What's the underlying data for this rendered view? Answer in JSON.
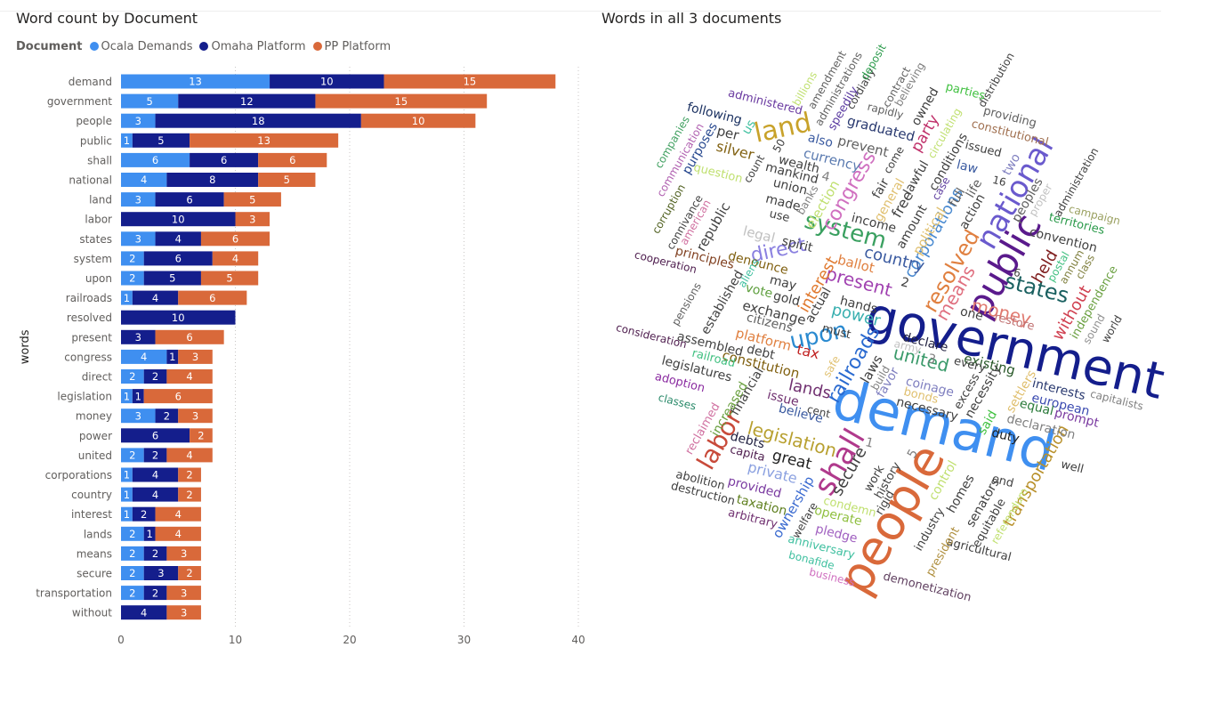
{
  "left_visual": {
    "title": "Word count by Document",
    "legend_title": "Document",
    "series_names": [
      "Ocala Demands",
      "Omaha Platform",
      "PP Platform"
    ],
    "colors": [
      "#3f8ff0",
      "#141e8c",
      "#d9693a"
    ]
  },
  "right_visual": {
    "title": "Words in all 3 documents"
  },
  "chart_data": [
    {
      "type": "bar",
      "orientation": "horizontal",
      "stacked": true,
      "title": "Word count by Document",
      "xlabel": "",
      "ylabel": "words",
      "xlim": [
        0,
        40
      ],
      "x_ticks": [
        0,
        10,
        20,
        30,
        40
      ],
      "categories": [
        "demand",
        "government",
        "people",
        "public",
        "shall",
        "national",
        "land",
        "labor",
        "states",
        "system",
        "upon",
        "railroads",
        "resolved",
        "present",
        "congress",
        "direct",
        "legislation",
        "money",
        "power",
        "united",
        "corporations",
        "country",
        "interest",
        "lands",
        "means",
        "secure",
        "transportation",
        "without"
      ],
      "series": [
        {
          "name": "Ocala Demands",
          "color": "#3f8ff0",
          "values": [
            13,
            5,
            3,
            1,
            6,
            4,
            3,
            0,
            3,
            2,
            2,
            1,
            0,
            0,
            4,
            2,
            1,
            3,
            0,
            2,
            1,
            1,
            1,
            2,
            2,
            2,
            2,
            0
          ]
        },
        {
          "name": "Omaha Platform",
          "color": "#141e8c",
          "values": [
            10,
            12,
            18,
            5,
            6,
            8,
            6,
            10,
            4,
            6,
            5,
            4,
            10,
            3,
            1,
            2,
            1,
            2,
            6,
            2,
            4,
            4,
            2,
            1,
            2,
            3,
            2,
            4
          ]
        },
        {
          "name": "PP Platform",
          "color": "#d9693a",
          "values": [
            15,
            15,
            10,
            13,
            6,
            5,
            5,
            3,
            6,
            4,
            5,
            6,
            0,
            6,
            3,
            4,
            6,
            3,
            2,
            4,
            2,
            2,
            4,
            4,
            3,
            2,
            3,
            3
          ]
        }
      ]
    },
    {
      "type": "wordcloud",
      "title": "Words in all 3 documents",
      "words": [
        {
          "text": "government",
          "color": "#141e8c"
        },
        {
          "text": "demand",
          "color": "#3f8ff0"
        },
        {
          "text": "people",
          "color": "#d9693a"
        },
        {
          "text": "public",
          "color": "#5a1a8c"
        },
        {
          "text": "national",
          "color": "#6a5acd"
        },
        {
          "text": "land",
          "color": "#c8a22a"
        },
        {
          "text": "shall",
          "color": "#b03a8c"
        },
        {
          "text": "labor",
          "color": "#c84a3a"
        },
        {
          "text": "system",
          "color": "#3aa060"
        },
        {
          "text": "states",
          "color": "#1a6060"
        },
        {
          "text": "railroads",
          "color": "#2a6ad0"
        },
        {
          "text": "legislation",
          "color": "#b8a030"
        },
        {
          "text": "upon",
          "color": "#2a8ad0"
        },
        {
          "text": "present",
          "color": "#a040b0"
        },
        {
          "text": "resolved",
          "color": "#e08040"
        },
        {
          "text": "money",
          "color": "#e07a70"
        },
        {
          "text": "congress",
          "color": "#d070c0"
        },
        {
          "text": "direct",
          "color": "#8a80e0"
        },
        {
          "text": "united",
          "color": "#3a9a6a"
        },
        {
          "text": "power",
          "color": "#3ab0b0"
        },
        {
          "text": "interest",
          "color": "#e07a30"
        },
        {
          "text": "corporations",
          "color": "#4a8ad0"
        },
        {
          "text": "country",
          "color": "#3a5aa0"
        },
        {
          "text": "means",
          "color": "#e07080"
        },
        {
          "text": "secure",
          "color": "#404040"
        },
        {
          "text": "transportation",
          "color": "#b8902a"
        },
        {
          "text": "without",
          "color": "#d04050"
        },
        {
          "text": "lands",
          "color": "#703070"
        },
        {
          "text": "following",
          "color": "#1a3060"
        },
        {
          "text": "silver",
          "color": "#806010"
        },
        {
          "text": "per",
          "color": "#404040"
        },
        {
          "text": "purposes",
          "color": "#2a4a90"
        },
        {
          "text": "graduated",
          "color": "#2a3a70"
        },
        {
          "text": "prevent",
          "color": "#606060"
        },
        {
          "text": "party",
          "color": "#c0306a"
        },
        {
          "text": "owned",
          "color": "#404040"
        },
        {
          "text": "providing",
          "color": "#606060"
        },
        {
          "text": "constitutional",
          "color": "#a07050"
        },
        {
          "text": "distribution",
          "color": "#404040"
        },
        {
          "text": "administration",
          "color": "#404040"
        },
        {
          "text": "convention",
          "color": "#404040"
        },
        {
          "text": "territories",
          "color": "#2a9a4a"
        },
        {
          "text": "campaign",
          "color": "#9aa060"
        },
        {
          "text": "independence",
          "color": "#6aa040"
        },
        {
          "text": "sound",
          "color": "#909090"
        },
        {
          "text": "world",
          "color": "#404040"
        },
        {
          "text": "held",
          "color": "#802020"
        },
        {
          "text": "interests",
          "color": "#2a3a70"
        },
        {
          "text": "european",
          "color": "#3a4ab0"
        },
        {
          "text": "capitalists",
          "color": "#808080"
        },
        {
          "text": "prompt",
          "color": "#7a3aa0"
        },
        {
          "text": "equal",
          "color": "#2a7a3a"
        },
        {
          "text": "declaration",
          "color": "#808080"
        },
        {
          "text": "duty",
          "color": "#202020"
        },
        {
          "text": "well",
          "color": "#404040"
        },
        {
          "text": "agricultural",
          "color": "#404040"
        },
        {
          "text": "demonetization",
          "color": "#604060"
        },
        {
          "text": "business",
          "color": "#d070c0"
        },
        {
          "text": "bonafide",
          "color": "#40c0a0"
        },
        {
          "text": "anniversary",
          "color": "#40c0a0"
        },
        {
          "text": "pledge",
          "color": "#a060c0"
        },
        {
          "text": "operate",
          "color": "#90c040"
        },
        {
          "text": "condemn",
          "color": "#c0e070"
        },
        {
          "text": "welfare",
          "color": "#404040"
        },
        {
          "text": "ownership",
          "color": "#3a6ad0"
        },
        {
          "text": "taxation",
          "color": "#608020"
        },
        {
          "text": "arbitrary",
          "color": "#703070"
        },
        {
          "text": "provided",
          "color": "#7a3aa0"
        },
        {
          "text": "destruction",
          "color": "#404040"
        },
        {
          "text": "abolition",
          "color": "#404040"
        },
        {
          "text": "private",
          "color": "#8aa0e0"
        },
        {
          "text": "great",
          "color": "#202020"
        },
        {
          "text": "capita",
          "color": "#502050"
        },
        {
          "text": "debts",
          "color": "#202040"
        },
        {
          "text": "classes",
          "color": "#2a8a6a"
        },
        {
          "text": "adoption",
          "color": "#8a2aa0"
        },
        {
          "text": "legislatures",
          "color": "#404040"
        },
        {
          "text": "consideration",
          "color": "#502050"
        },
        {
          "text": "cooperation",
          "color": "#502050"
        },
        {
          "text": "pensions",
          "color": "#606060"
        },
        {
          "text": "principles",
          "color": "#804020"
        },
        {
          "text": "republic",
          "color": "#404040"
        },
        {
          "text": "corruption",
          "color": "#506020"
        },
        {
          "text": "connivance",
          "color": "#404040"
        },
        {
          "text": "american",
          "color": "#d070a0"
        },
        {
          "text": "communication",
          "color": "#b060b0"
        },
        {
          "text": "companies",
          "color": "#40a060"
        },
        {
          "text": "question",
          "color": "#c0e070"
        },
        {
          "text": "administered",
          "color": "#6a3aa0"
        },
        {
          "text": "billions",
          "color": "#c0e070"
        },
        {
          "text": "amendment",
          "color": "#606060"
        },
        {
          "text": "administrations",
          "color": "#606060"
        },
        {
          "text": "speedily",
          "color": "#5a3aa0"
        },
        {
          "text": "cordially",
          "color": "#404040"
        },
        {
          "text": "deposit",
          "color": "#2a9a4a"
        },
        {
          "text": "contract",
          "color": "#606060"
        },
        {
          "text": "believing",
          "color": "#808080"
        },
        {
          "text": "rapidly",
          "color": "#606060"
        },
        {
          "text": "parties",
          "color": "#40c040"
        },
        {
          "text": "issued",
          "color": "#404040"
        },
        {
          "text": "circulating",
          "color": "#c0e070"
        },
        {
          "text": "two",
          "color": "#8080c0"
        },
        {
          "text": "wealth",
          "color": "#404040"
        },
        {
          "text": "mankind",
          "color": "#404040"
        },
        {
          "text": "union",
          "color": "#404040"
        },
        {
          "text": "made",
          "color": "#404040"
        },
        {
          "text": "use",
          "color": "#404040"
        },
        {
          "text": "currency",
          "color": "#5a7ab0"
        },
        {
          "text": "also",
          "color": "#3a5aa0"
        },
        {
          "text": "election",
          "color": "#c0e070"
        },
        {
          "text": "general",
          "color": "#e0c070"
        },
        {
          "text": "fair",
          "color": "#404040"
        },
        {
          "text": "free",
          "color": "#404040"
        },
        {
          "text": "lawful",
          "color": "#404040"
        },
        {
          "text": "conditions",
          "color": "#404040"
        },
        {
          "text": "law",
          "color": "#3a5aa0"
        },
        {
          "text": "full",
          "color": "#606060"
        },
        {
          "text": "life",
          "color": "#606060"
        },
        {
          "text": "action",
          "color": "#404040"
        },
        {
          "text": "peoples",
          "color": "#606060"
        },
        {
          "text": "proper",
          "color": "#c0c0c0"
        },
        {
          "text": "postal",
          "color": "#40c080"
        },
        {
          "text": "annum",
          "color": "#808040"
        },
        {
          "text": "class",
          "color": "#808040"
        },
        {
          "text": "amount",
          "color": "#404040"
        },
        {
          "text": "political",
          "color": "#e0c070"
        },
        {
          "text": "income",
          "color": "#404040"
        },
        {
          "text": "ballot",
          "color": "#e08040"
        },
        {
          "text": "denounce",
          "color": "#806010"
        },
        {
          "text": "legal",
          "color": "#c0c0c0"
        },
        {
          "text": "spirit",
          "color": "#404040"
        },
        {
          "text": "may",
          "color": "#404040"
        },
        {
          "text": "gold",
          "color": "#404040"
        },
        {
          "text": "vote",
          "color": "#60a040"
        },
        {
          "text": "exchange",
          "color": "#404040"
        },
        {
          "text": "citizens",
          "color": "#606060"
        },
        {
          "text": "platform",
          "color": "#e08040"
        },
        {
          "text": "assembled",
          "color": "#404040"
        },
        {
          "text": "debt",
          "color": "#404040"
        },
        {
          "text": "constitution",
          "color": "#806010"
        },
        {
          "text": "tax",
          "color": "#c02020"
        },
        {
          "text": "must",
          "color": "#404040"
        },
        {
          "text": "hands",
          "color": "#404040"
        },
        {
          "text": "actual",
          "color": "#404040"
        },
        {
          "text": "established",
          "color": "#404040"
        },
        {
          "text": "aliens",
          "color": "#40c0a0"
        },
        {
          "text": "banks",
          "color": "#808080"
        },
        {
          "text": "count",
          "color": "#404040"
        },
        {
          "text": "us",
          "color": "#40c0a0"
        },
        {
          "text": "come",
          "color": "#404040"
        },
        {
          "text": "case",
          "color": "#6040a0"
        },
        {
          "text": "one",
          "color": "#404040"
        },
        {
          "text": "declare",
          "color": "#202040"
        },
        {
          "text": "army",
          "color": "#c0c0c0"
        },
        {
          "text": "existing",
          "color": "#2a5a2a"
        },
        {
          "text": "every",
          "color": "#404040"
        },
        {
          "text": "restore",
          "color": "#c07070"
        },
        {
          "text": "necessity",
          "color": "#404040"
        },
        {
          "text": "excess",
          "color": "#404040"
        },
        {
          "text": "coinage",
          "color": "#8080c0"
        },
        {
          "text": "necessary",
          "color": "#404040"
        },
        {
          "text": "favor",
          "color": "#8080c0"
        },
        {
          "text": "laws",
          "color": "#404040"
        },
        {
          "text": "build",
          "color": "#808080"
        },
        {
          "text": "said",
          "color": "#40c040"
        },
        {
          "text": "settlers",
          "color": "#e0c070"
        },
        {
          "text": "financial",
          "color": "#404040"
        },
        {
          "text": "increased",
          "color": "#6aa040"
        },
        {
          "text": "reclaimed",
          "color": "#d070a0"
        },
        {
          "text": "issue",
          "color": "#703070"
        },
        {
          "text": "believe",
          "color": "#3a5aa0"
        },
        {
          "text": "cent",
          "color": "#404040"
        },
        {
          "text": "railroad",
          "color": "#40c080"
        },
        {
          "text": "safe",
          "color": "#e0c070"
        },
        {
          "text": "bonds",
          "color": "#e0c070"
        },
        {
          "text": "work",
          "color": "#404040"
        },
        {
          "text": "history",
          "color": "#404040"
        },
        {
          "text": "rigid",
          "color": "#404040"
        },
        {
          "text": "industry",
          "color": "#404040"
        },
        {
          "text": "president",
          "color": "#b09040"
        },
        {
          "text": "homes",
          "color": "#404040"
        },
        {
          "text": "control",
          "color": "#c0e070"
        },
        {
          "text": "senators",
          "color": "#404040"
        },
        {
          "text": "equitable",
          "color": "#404040"
        },
        {
          "text": "end",
          "color": "#404040"
        },
        {
          "text": "referendum",
          "color": "#c0e070"
        },
        {
          "text": "1",
          "color": "#808080"
        },
        {
          "text": "2",
          "color": "#404040"
        },
        {
          "text": "3",
          "color": "#808080"
        },
        {
          "text": "4",
          "color": "#808080"
        },
        {
          "text": "5",
          "color": "#808080"
        },
        {
          "text": "6",
          "color": "#404040"
        },
        {
          "text": "16",
          "color": "#404040"
        },
        {
          "text": "50",
          "color": "#404040"
        }
      ]
    }
  ]
}
